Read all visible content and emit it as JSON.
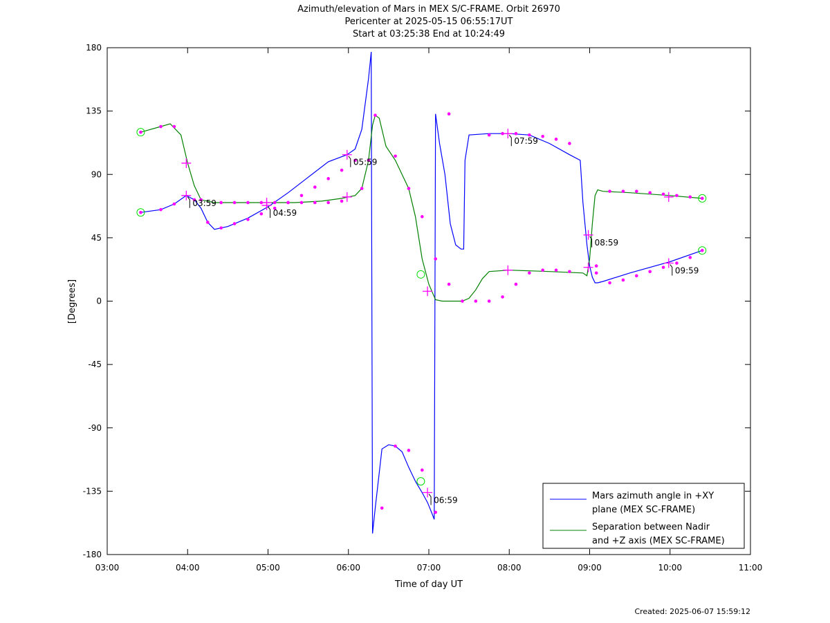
{
  "title_lines": [
    "Azimuth/elevation of Mars in MEX S/C-FRAME.  Orbit 26970",
    "Pericenter at 2025-05-15 06:55:17UT",
    "Start at 03:25:38 End at 10:24:49"
  ],
  "created": "Created: 2025-06-07 15:59:12",
  "chart_data": {
    "type": "line",
    "xlabel": "Time of day UT",
    "ylabel": "[Degrees]",
    "xlim": [
      "03:00",
      "11:00"
    ],
    "ylim": [
      -180,
      180
    ],
    "x_ticks": [
      "03:00",
      "04:00",
      "05:00",
      "06:00",
      "07:00",
      "08:00",
      "09:00",
      "10:00",
      "11:00"
    ],
    "y_ticks": [
      "180",
      "135",
      "90",
      "45",
      "0",
      "-45",
      "-90",
      "-135",
      "-180"
    ],
    "grid": false,
    "legend_position": "bottom-right",
    "series": [
      {
        "name": "Mars azimuth angle in +XY plane (MEX SC-FRAME)",
        "legend_lines": [
          "Mars azimuth angle in +XY",
          "plane (MEX SC-FRAME)"
        ],
        "color": "#0000ff",
        "x": [
          "03:25",
          "03:40",
          "03:50",
          "03:59",
          "04:05",
          "04:10",
          "04:15",
          "04:20",
          "04:30",
          "04:45",
          "05:00",
          "05:15",
          "05:30",
          "05:45",
          "05:59",
          "06:05",
          "06:10",
          "06:15",
          "06:17",
          "06:17.5",
          "06:18",
          "06:20",
          "06:25",
          "06:30",
          "06:35",
          "06:40",
          "06:45",
          "06:50",
          "06:55",
          "06:59",
          "07:02",
          "07:04",
          "07:04.5",
          "07:05",
          "07:08",
          "07:12",
          "07:16",
          "07:20",
          "07:24",
          "07:26",
          "07:27",
          "07:30",
          "07:45",
          "08:00",
          "08:15",
          "08:30",
          "08:45",
          "08:53",
          "08:55",
          "08:58",
          "09:00",
          "09:02",
          "09:04",
          "09:06",
          "09:10",
          "09:30",
          "10:00",
          "10:24"
        ],
        "y": [
          63,
          65,
          69,
          75,
          72,
          66,
          56,
          51,
          53,
          59,
          67,
          77,
          88,
          99,
          104,
          108,
          122,
          158,
          177,
          -10,
          -165,
          -147,
          -105,
          -102,
          -103,
          -107,
          -118,
          -128,
          -136,
          -143,
          -150,
          -155,
          -20,
          133,
          112,
          90,
          55,
          40,
          37,
          37,
          100,
          118,
          119,
          119,
          118,
          112,
          104,
          100,
          70,
          40,
          25,
          17,
          13,
          13,
          14,
          20,
          28,
          36
        ],
        "markers_x": [
          "03:25",
          "03:40",
          "03:50",
          "04:05",
          "04:15",
          "04:25",
          "04:35",
          "04:45",
          "04:55",
          "05:05",
          "05:15",
          "05:25",
          "05:35",
          "05:45",
          "05:55",
          "06:05",
          "06:25",
          "06:35",
          "06:45",
          "06:55",
          "07:05",
          "07:15",
          "07:45",
          "07:55",
          "08:05",
          "08:15",
          "08:25",
          "08:35",
          "08:45",
          "09:05",
          "09:15",
          "09:25",
          "09:35",
          "09:45",
          "09:55",
          "10:05",
          "10:15",
          "10:24"
        ],
        "markers_y": [
          63,
          65,
          69,
          72,
          56,
          52,
          55,
          58,
          62,
          66,
          70,
          75,
          81,
          87,
          93,
          100,
          -147,
          -103,
          -106,
          -120,
          -150,
          133,
          118,
          119,
          119,
          118,
          117,
          115,
          112,
          25,
          13,
          15,
          18,
          21,
          24,
          27,
          31,
          36
        ],
        "hourly_crosses_x": [
          "03:59",
          "04:59",
          "05:59",
          "06:59",
          "07:59",
          "08:59",
          "09:59"
        ],
        "hourly_crosses_y": [
          75,
          68,
          104,
          -136,
          119,
          47,
          27
        ],
        "circle_x": [
          "03:25",
          "06:54",
          "10:24"
        ],
        "circle_y": [
          63,
          -128,
          36
        ]
      },
      {
        "name": "Separation between Nadir and +Z axis (MEX SC-FRAME)",
        "legend_lines": [
          "Separation between Nadir",
          "and +Z axis (MEX SC-FRAME)"
        ],
        "color": "#008000",
        "x": [
          "03:25",
          "03:40",
          "03:47",
          "03:55",
          "04:00",
          "04:05",
          "04:10",
          "04:20",
          "04:40",
          "05:00",
          "05:20",
          "05:40",
          "05:55",
          "06:00",
          "06:05",
          "06:10",
          "06:15",
          "06:18",
          "06:20",
          "06:23",
          "06:28",
          "06:35",
          "06:45",
          "06:50",
          "06:55",
          "07:00",
          "07:05",
          "07:10",
          "07:20",
          "07:25",
          "07:30",
          "07:35",
          "07:40",
          "07:45",
          "08:00",
          "08:30",
          "08:55",
          "08:58",
          "09:00",
          "09:02",
          "09:04",
          "09:06",
          "09:10",
          "09:30",
          "10:00",
          "10:24"
        ],
        "y": [
          120,
          124,
          126,
          118,
          98,
          82,
          72,
          70,
          70,
          70,
          70,
          71,
          73,
          74,
          75,
          80,
          100,
          125,
          132,
          130,
          110,
          100,
          80,
          60,
          30,
          12,
          1,
          0,
          0,
          0,
          2,
          8,
          16,
          21,
          22,
          21,
          20,
          18,
          30,
          55,
          75,
          79,
          78,
          77,
          75,
          73
        ],
        "markers_x": [
          "03:25",
          "03:40",
          "03:50",
          "04:10",
          "04:25",
          "04:35",
          "04:45",
          "04:55",
          "05:05",
          "05:15",
          "05:25",
          "05:35",
          "05:45",
          "05:55",
          "06:10",
          "06:15",
          "06:20",
          "06:35",
          "06:45",
          "06:55",
          "07:05",
          "07:15",
          "07:25",
          "07:35",
          "07:45",
          "07:55",
          "08:05",
          "08:15",
          "08:25",
          "08:35",
          "08:45",
          "09:05",
          "09:15",
          "09:25",
          "09:35",
          "09:45",
          "09:55",
          "10:05",
          "10:15",
          "10:24"
        ],
        "markers_y": [
          120,
          124,
          124,
          72,
          70,
          70,
          70,
          70,
          70,
          70,
          70,
          70,
          70,
          71,
          80,
          100,
          132,
          103,
          80,
          60,
          30,
          12,
          0,
          0,
          0,
          3,
          12,
          20,
          22,
          22,
          21,
          20,
          78,
          78,
          78,
          77,
          76,
          75,
          74,
          73
        ],
        "hourly_crosses_x": [
          "03:59",
          "04:59",
          "05:59",
          "06:59",
          "07:59",
          "08:59",
          "09:59"
        ],
        "hourly_crosses_y": [
          98,
          70,
          74,
          7,
          22,
          24,
          74
        ],
        "circle_x": [
          "03:25",
          "06:54",
          "10:24"
        ],
        "circle_y": [
          120,
          19,
          73
        ]
      }
    ],
    "annotations": [
      {
        "label": "03:59",
        "x": "03:59",
        "y": 75
      },
      {
        "label": "04:59",
        "x": "04:59",
        "y": 68
      },
      {
        "label": "05:59",
        "x": "05:59",
        "y": 104
      },
      {
        "label": "06:59",
        "x": "06:59",
        "y": -136
      },
      {
        "label": "07:59",
        "x": "07:59",
        "y": 119
      },
      {
        "label": "08:59",
        "x": "08:59",
        "y": 47
      },
      {
        "label": "09:59",
        "x": "09:59",
        "y": 27
      }
    ]
  }
}
